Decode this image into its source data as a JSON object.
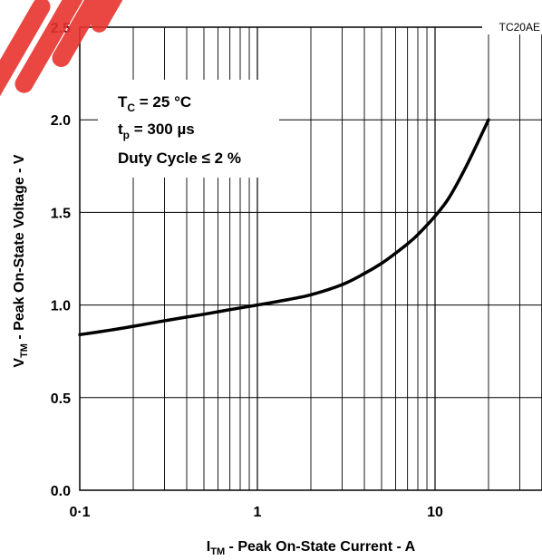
{
  "figure_tag": "TC20AE",
  "watermark_color": "#e8322e",
  "conditions": {
    "line1_main": "T",
    "line1_sub": "C",
    "line1_rest": " = 25 °C",
    "line2_main": "t",
    "line2_sub": "p",
    "line2_rest": " = 300 µs",
    "line3": "Duty Cycle ≤ 2 %"
  },
  "chart_data": {
    "type": "line",
    "x_scale": "log",
    "xlim": [
      0.1,
      40
    ],
    "ylim": [
      0.0,
      2.5
    ],
    "grid": true,
    "legend": "none",
    "x_ticks": [
      {
        "value": 0.1,
        "label": "0·1"
      },
      {
        "value": 1,
        "label": "1"
      },
      {
        "value": 10,
        "label": "10"
      }
    ],
    "y_ticks": [
      {
        "value": 0.0,
        "label": "0.0"
      },
      {
        "value": 0.5,
        "label": "0.5"
      },
      {
        "value": 1.0,
        "label": "1.0"
      },
      {
        "value": 1.5,
        "label": "1.5"
      },
      {
        "value": 2.0,
        "label": "2.0"
      },
      {
        "value": 2.5,
        "label": "2.5"
      }
    ],
    "xlabel": {
      "main": "I",
      "sub": "TM",
      "rest": " - Peak On-State Current - A"
    },
    "ylabel": {
      "main": "V",
      "sub": "TM",
      "rest": " - Peak On-State Voltage - V"
    },
    "series": [
      {
        "x": [
          0.1,
          0.15,
          0.2,
          0.3,
          0.4,
          0.5,
          0.7,
          1,
          1.5,
          2,
          3,
          4,
          5,
          6,
          7,
          8,
          10,
          12,
          15,
          20
        ],
        "y": [
          0.84,
          0.865,
          0.885,
          0.915,
          0.935,
          0.95,
          0.975,
          1.0,
          1.03,
          1.055,
          1.11,
          1.17,
          1.225,
          1.28,
          1.33,
          1.38,
          1.48,
          1.58,
          1.75,
          2.0
        ]
      }
    ]
  }
}
